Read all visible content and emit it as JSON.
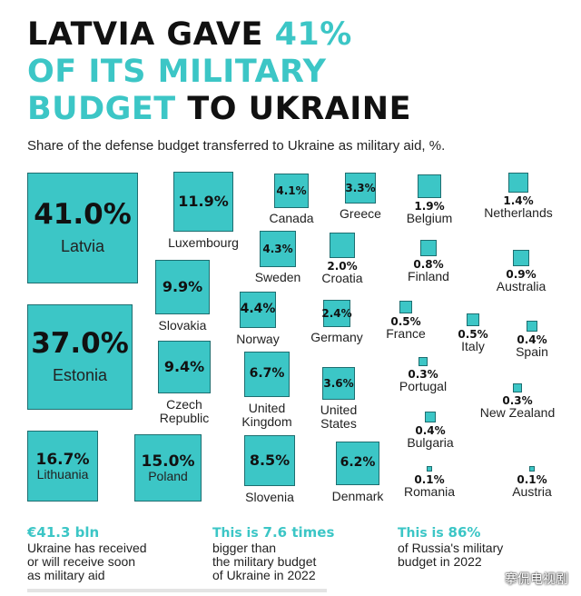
{
  "title": {
    "line1_dark": "LATVIA GAVE ",
    "line1_accent": "41%",
    "line2_accent": "OF ITS MILITARY",
    "line3_accent": "BUDGET",
    "line3_dark": " TO UKRAINE"
  },
  "subtitle": "Share of the defense budget transferred to Ukraine as military aid, %.",
  "colors": {
    "accent": "#3cc6c6",
    "border": "#1e6e70",
    "text": "#111111"
  },
  "chart_data": {
    "type": "proportional-squares",
    "unit": "%",
    "items": [
      {
        "country": "Latvia",
        "value": 41.0,
        "display": "41.0%",
        "label_inside": true
      },
      {
        "country": "Estonia",
        "value": 37.0,
        "display": "37.0%",
        "label_inside": true
      },
      {
        "country": "Lithuania",
        "value": 16.7,
        "display": "16.7%",
        "label_inside": true
      },
      {
        "country": "Poland",
        "value": 15.0,
        "display": "15.0%",
        "label_inside": true
      },
      {
        "country": "Luxembourg",
        "value": 11.9,
        "display": "11.9%"
      },
      {
        "country": "Slovakia",
        "value": 9.9,
        "display": "9.9%"
      },
      {
        "country": "Czech\nRepublic",
        "value": 9.4,
        "display": "9.4%"
      },
      {
        "country": "Slovenia",
        "value": 8.5,
        "display": "8.5%"
      },
      {
        "country": "United\nKingdom",
        "value": 6.7,
        "display": "6.7%"
      },
      {
        "country": "Denmark",
        "value": 6.2,
        "display": "6.2%"
      },
      {
        "country": "Norway",
        "value": 4.4,
        "display": "4.4%"
      },
      {
        "country": "Sweden",
        "value": 4.3,
        "display": "4.3%"
      },
      {
        "country": "Canada",
        "value": 4.1,
        "display": "4.1%"
      },
      {
        "country": "United\nStates",
        "value": 3.6,
        "display": "3.6%"
      },
      {
        "country": "Greece",
        "value": 3.3,
        "display": "3.3%"
      },
      {
        "country": "Germany",
        "value": 2.4,
        "display": "2.4%"
      },
      {
        "country": "Croatia",
        "value": 2.0,
        "display": "2.0%"
      },
      {
        "country": "Belgium",
        "value": 1.9,
        "display": "1.9%"
      },
      {
        "country": "Netherlands",
        "value": 1.4,
        "display": "1.4%"
      },
      {
        "country": "Australia",
        "value": 0.9,
        "display": "0.9%"
      },
      {
        "country": "Finland",
        "value": 0.8,
        "display": "0.8%"
      },
      {
        "country": "France",
        "value": 0.5,
        "display": "0.5%"
      },
      {
        "country": "Italy",
        "value": 0.5,
        "display": "0.5%"
      },
      {
        "country": "Spain",
        "value": 0.4,
        "display": "0.4%"
      },
      {
        "country": "Bulgaria",
        "value": 0.4,
        "display": "0.4%"
      },
      {
        "country": "Portugal",
        "value": 0.3,
        "display": "0.3%"
      },
      {
        "country": "New Zealand",
        "value": 0.3,
        "display": "0.3%"
      },
      {
        "country": "Romania",
        "value": 0.1,
        "display": "0.1%"
      },
      {
        "country": "Austria",
        "value": 0.1,
        "display": "0.1%"
      }
    ]
  },
  "footer": [
    {
      "highlight_pre": "",
      "highlight_num": "€41.3 bln",
      "highlight_post": "",
      "body": "Ukraine has received\nor will receive soon\nas military aid"
    },
    {
      "highlight_pre": "This is ",
      "highlight_num": "7.6 times",
      "highlight_post": "",
      "body": "bigger than\nthe military budget\nof Ukraine in 2022"
    },
    {
      "highlight_pre": "This is ",
      "highlight_num": "86%",
      "highlight_post": "",
      "body": "of Russia's military\nbudget in 2022"
    }
  ],
  "watermark": "搴侃电视剧"
}
